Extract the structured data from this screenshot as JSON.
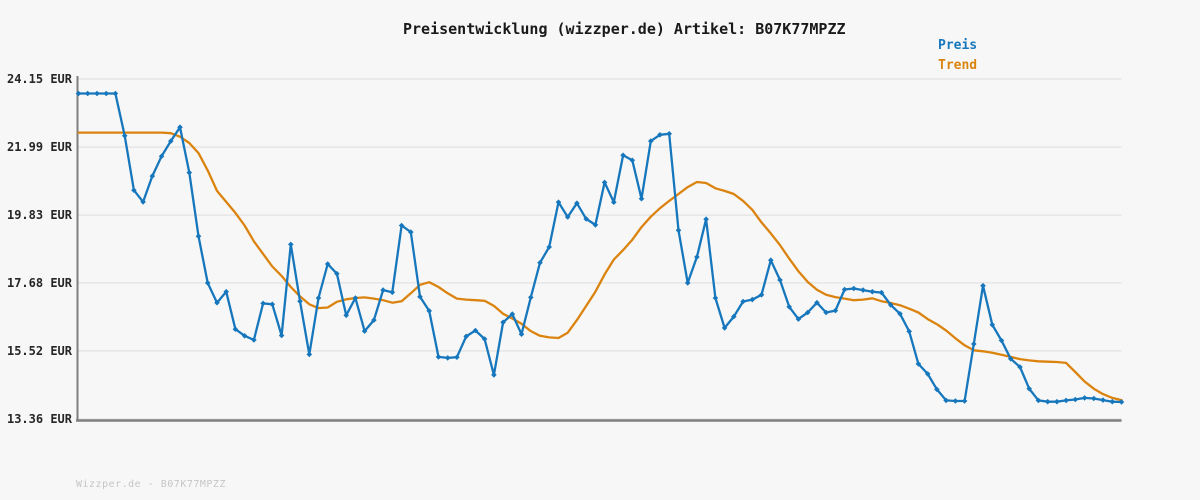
{
  "title": "Preisentwicklung (wizzper.de) Artikel: B07K77MPZZ",
  "legend": {
    "items": [
      {
        "label": "Preis",
        "color": "#1777bd"
      },
      {
        "label": "Trend",
        "color": "#db830f"
      }
    ]
  },
  "watermark": "Wizzper.de - B07K77MPZZ",
  "colors": {
    "background": "#f7f7f7",
    "grid": "#e8e8e8",
    "axis": "#7f7f7f",
    "title_text": "#1a1a1a",
    "tick_text": "#262626",
    "watermark_text": "#c6c6c6",
    "preis": "#1777bd",
    "trend": "#db830f"
  },
  "y_axis": {
    "unit": "EUR",
    "tick_labels": [
      "24.15 EUR",
      "21.99 EUR",
      "19.83 EUR",
      "17.68 EUR",
      "15.52 EUR",
      "13.36 EUR"
    ],
    "tick_values": [
      24.15,
      21.99,
      19.83,
      17.68,
      15.52,
      13.36
    ],
    "min": 13.36,
    "max": 24.15
  },
  "x_axis": {
    "tick_labels": "none"
  },
  "chart_data": {
    "type": "line",
    "title": "Preisentwicklung (wizzper.de) Artikel: B07K77MPZZ",
    "xlabel": "",
    "ylabel": "EUR",
    "ylim": [
      13.36,
      24.15
    ],
    "grid": true,
    "legend_position": "top-right",
    "x": "evenly spaced observations, no labels shown",
    "series": [
      {
        "name": "Preis",
        "color": "#1777bd",
        "marker": "diamond",
        "values": [
          23.69,
          23.69,
          23.69,
          23.69,
          23.69,
          22.35,
          20.62,
          20.25,
          21.07,
          21.7,
          22.18,
          22.62,
          21.18,
          19.16,
          17.68,
          17.05,
          17.4,
          16.21,
          16.0,
          15.87,
          17.03,
          17.0,
          16.01,
          18.9,
          17.1,
          15.41,
          17.2,
          18.28,
          17.97,
          16.65,
          17.2,
          16.15,
          16.5,
          17.45,
          17.38,
          19.5,
          19.29,
          17.24,
          16.79,
          15.33,
          15.3,
          15.32,
          15.98,
          16.17,
          15.9,
          14.76,
          16.43,
          16.69,
          16.05,
          17.22,
          18.32,
          18.82,
          20.24,
          19.77,
          20.21,
          19.71,
          19.52,
          20.87,
          20.24,
          21.73,
          21.57,
          20.35,
          22.18,
          22.38,
          22.41,
          19.35,
          17.68,
          18.5,
          19.7,
          17.2,
          16.25,
          16.61,
          17.09,
          17.15,
          17.3,
          18.4,
          17.77,
          16.92,
          16.53,
          16.74,
          17.05,
          16.74,
          16.8,
          17.47,
          17.5,
          17.45,
          17.4,
          17.37,
          16.98,
          16.7,
          16.14,
          15.11,
          14.79,
          14.3,
          13.95,
          13.93,
          13.93,
          15.74,
          17.59,
          16.35,
          15.85,
          15.27,
          15.01,
          14.32,
          13.95,
          13.91,
          13.91,
          13.95,
          13.98,
          14.03,
          14.01,
          13.96,
          13.91,
          13.9
        ]
      },
      {
        "name": "Trend",
        "color": "#db830f",
        "marker": "none",
        "values": [
          22.45,
          22.45,
          22.45,
          22.45,
          22.45,
          22.45,
          22.45,
          22.45,
          22.45,
          22.45,
          22.43,
          22.32,
          22.12,
          21.8,
          21.25,
          20.6,
          20.25,
          19.9,
          19.5,
          19.0,
          18.6,
          18.2,
          17.9,
          17.55,
          17.25,
          17.0,
          16.88,
          16.9,
          17.08,
          17.16,
          17.2,
          17.22,
          17.18,
          17.13,
          17.05,
          17.1,
          17.35,
          17.62,
          17.7,
          17.55,
          17.35,
          17.18,
          17.15,
          17.13,
          17.11,
          16.95,
          16.7,
          16.55,
          16.38,
          16.15,
          16.0,
          15.95,
          15.93,
          16.1,
          16.5,
          16.95,
          17.4,
          17.95,
          18.42,
          18.72,
          19.05,
          19.45,
          19.78,
          20.05,
          20.28,
          20.5,
          20.72,
          20.88,
          20.85,
          20.68,
          20.6,
          20.5,
          20.28,
          20.0,
          19.6,
          19.25,
          18.88,
          18.45,
          18.05,
          17.71,
          17.46,
          17.3,
          17.23,
          17.18,
          17.13,
          17.15,
          17.19,
          17.1,
          17.04,
          16.97,
          16.86,
          16.74,
          16.53,
          16.37,
          16.17,
          15.92,
          15.7,
          15.54,
          15.51,
          15.46,
          15.4,
          15.33,
          15.26,
          15.22,
          15.19,
          15.18,
          15.17,
          15.14,
          14.85,
          14.55,
          14.32,
          14.15,
          14.03,
          13.96
        ]
      }
    ]
  }
}
